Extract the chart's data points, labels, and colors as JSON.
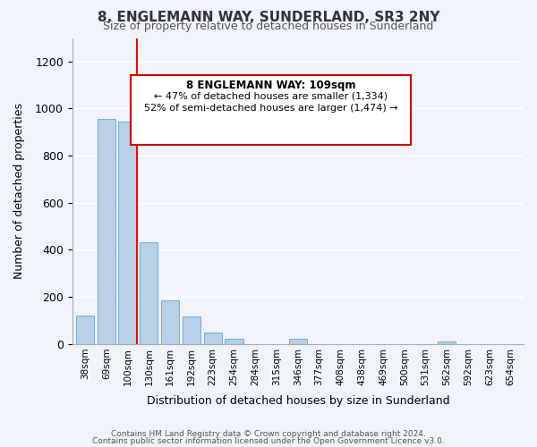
{
  "title": "8, ENGLEMANN WAY, SUNDERLAND, SR3 2NY",
  "subtitle": "Size of property relative to detached houses in Sunderland",
  "xlabel": "Distribution of detached houses by size in Sunderland",
  "ylabel": "Number of detached properties",
  "bar_labels": [
    "38sqm",
    "69sqm",
    "100sqm",
    "130sqm",
    "161sqm",
    "192sqm",
    "223sqm",
    "254sqm",
    "284sqm",
    "315sqm",
    "346sqm",
    "377sqm",
    "408sqm",
    "438sqm",
    "469sqm",
    "500sqm",
    "531sqm",
    "562sqm",
    "592sqm",
    "623sqm",
    "654sqm"
  ],
  "bar_values": [
    120,
    955,
    945,
    430,
    185,
    115,
    48,
    20,
    0,
    0,
    20,
    0,
    0,
    0,
    0,
    0,
    0,
    10,
    0,
    0,
    0
  ],
  "bar_color": "#b8d0e8",
  "bar_edge_color": "#7aaed0",
  "redline_x": 2,
  "ylim": [
    0,
    1300
  ],
  "yticks": [
    0,
    200,
    400,
    600,
    800,
    1000,
    1200
  ],
  "annotation_title": "8 ENGLEMANN WAY: 109sqm",
  "annotation_line1": "← 47% of detached houses are smaller (1,334)",
  "annotation_line2": "52% of semi-detached houses are larger (1,474) →",
  "annotation_box_color": "#ffffff",
  "annotation_box_edge": "#cc0000",
  "footer_line1": "Contains HM Land Registry data © Crown copyright and database right 2024.",
  "footer_line2": "Contains public sector information licensed under the Open Government Licence v3.0.",
  "background_color": "#f0f4fa",
  "grid_color": "#ffffff"
}
